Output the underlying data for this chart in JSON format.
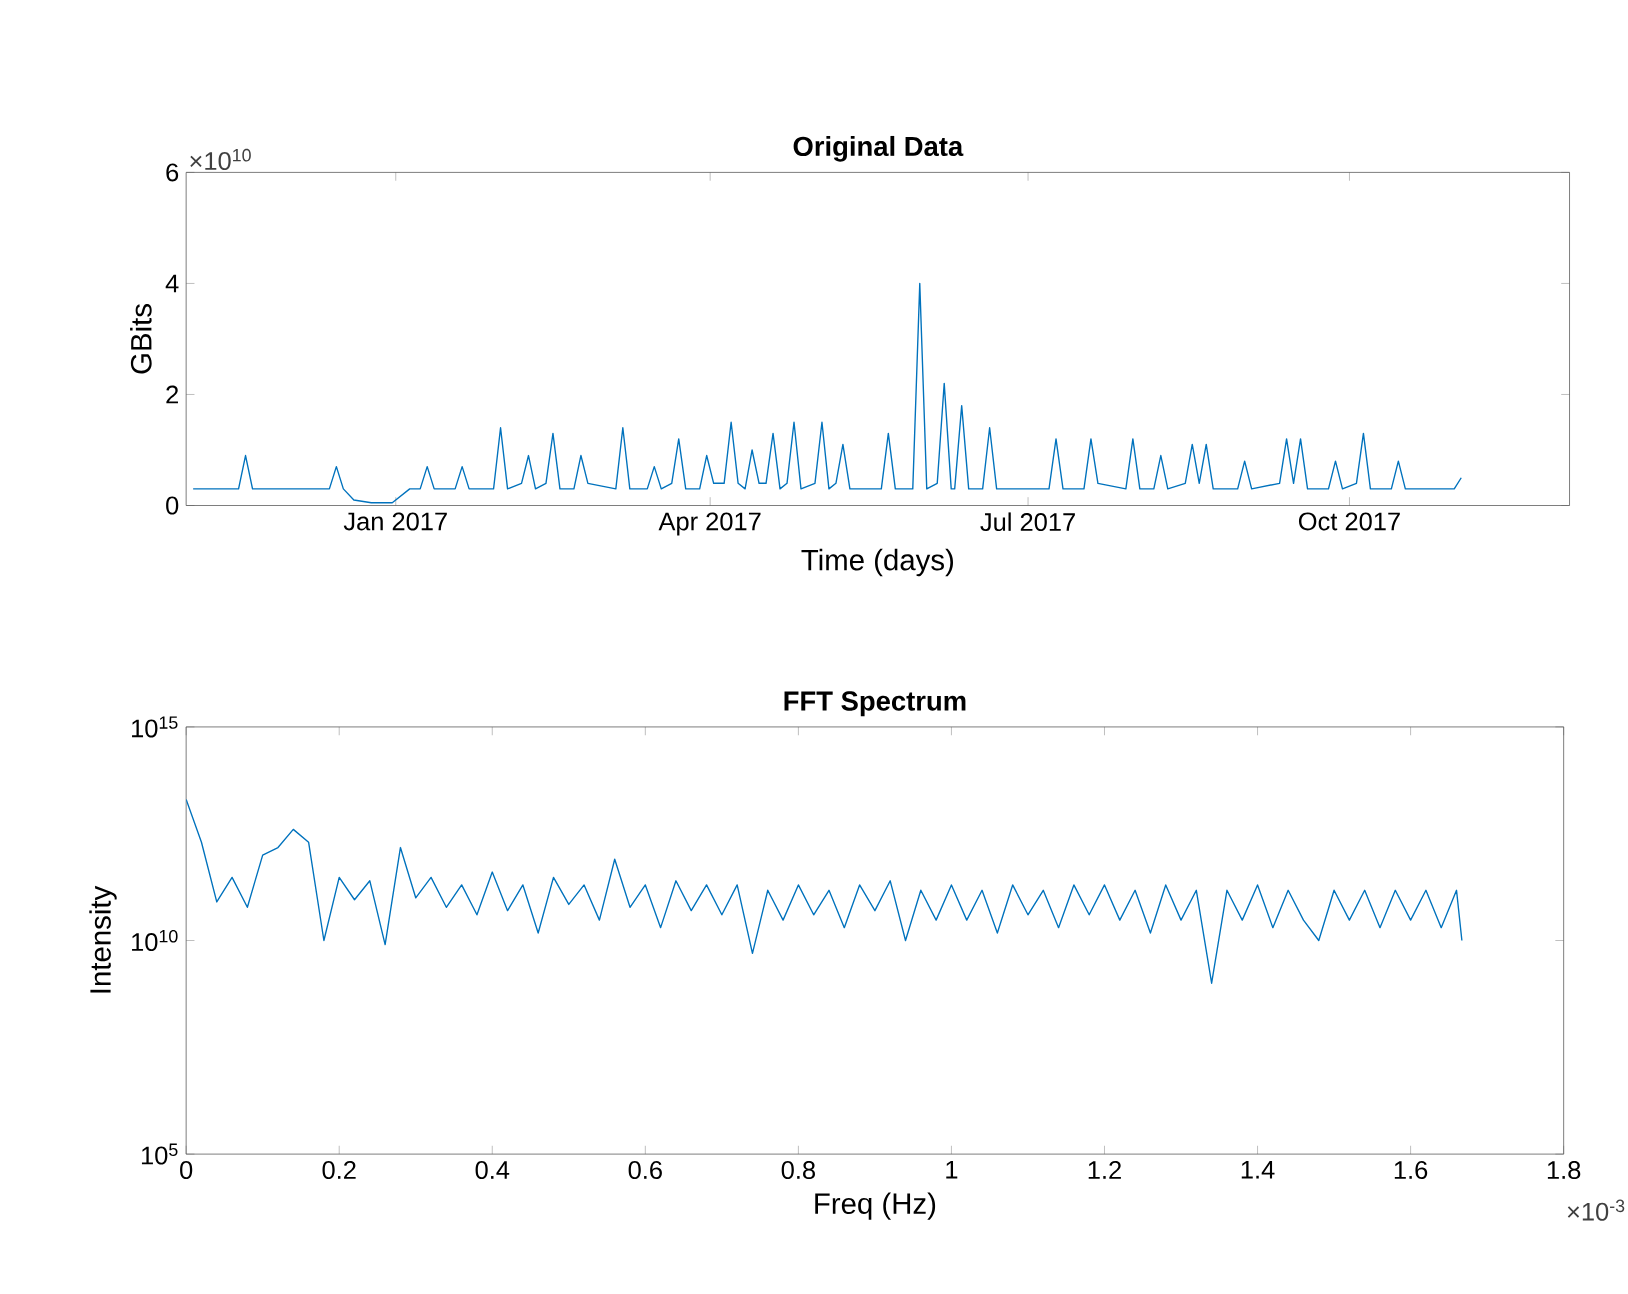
{
  "chart_data": [
    {
      "type": "line",
      "title": "Original Data",
      "xlabel": "Time (days)",
      "ylabel": "GBits",
      "x": [
        "2016-11-04",
        "2016-11-17",
        "2016-11-19",
        "2016-11-21",
        "2016-12-13",
        "2016-12-15",
        "2016-12-17",
        "2016-12-20",
        "2016-12-25",
        "2016-12-31",
        "2017-01-05",
        "2017-01-08",
        "2017-01-10",
        "2017-01-12",
        "2017-01-18",
        "2017-01-20",
        "2017-01-22",
        "2017-01-29",
        "2017-01-31",
        "2017-02-02",
        "2017-02-06",
        "2017-02-08",
        "2017-02-10",
        "2017-02-13",
        "2017-02-15",
        "2017-02-17",
        "2017-02-21",
        "2017-02-23",
        "2017-02-25",
        "2017-03-05",
        "2017-03-07",
        "2017-03-09",
        "2017-03-14",
        "2017-03-16",
        "2017-03-18",
        "2017-03-21",
        "2017-03-23",
        "2017-03-25",
        "2017-03-29",
        "2017-03-31",
        "2017-04-02",
        "2017-04-05",
        "2017-04-07",
        "2017-04-09",
        "2017-04-11",
        "2017-04-13",
        "2017-04-15",
        "2017-04-17",
        "2017-04-19",
        "2017-04-21",
        "2017-04-23",
        "2017-04-25",
        "2017-04-27",
        "2017-05-01",
        "2017-05-03",
        "2017-05-05",
        "2017-05-07",
        "2017-05-09",
        "2017-05-11",
        "2017-05-20",
        "2017-05-22",
        "2017-05-24",
        "2017-05-29",
        "2017-05-31",
        "2017-06-02",
        "2017-06-05",
        "2017-06-07",
        "2017-06-09",
        "2017-06-10",
        "2017-06-12",
        "2017-06-14",
        "2017-06-18",
        "2017-06-20",
        "2017-06-22",
        "2017-07-07",
        "2017-07-09",
        "2017-07-11",
        "2017-07-17",
        "2017-07-19",
        "2017-07-21",
        "2017-07-29",
        "2017-07-31",
        "2017-08-02",
        "2017-08-06",
        "2017-08-08",
        "2017-08-10",
        "2017-08-15",
        "2017-08-17",
        "2017-08-19",
        "2017-08-21",
        "2017-08-23",
        "2017-08-30",
        "2017-09-01",
        "2017-09-03",
        "2017-09-11",
        "2017-09-13",
        "2017-09-15",
        "2017-09-17",
        "2017-09-19",
        "2017-09-25",
        "2017-09-27",
        "2017-09-29",
        "2017-10-03",
        "2017-10-05",
        "2017-10-07",
        "2017-10-13",
        "2017-10-15",
        "2017-10-17",
        "2017-10-31",
        "2017-11-02"
      ],
      "series": [
        {
          "color": "#0072bd",
          "values": [
            0.3,
            0.3,
            0.9,
            0.3,
            0.3,
            0.7,
            0.3,
            0.1,
            0.05,
            0.05,
            0.3,
            0.3,
            0.7,
            0.3,
            0.3,
            0.7,
            0.3,
            0.3,
            1.4,
            0.3,
            0.4,
            0.9,
            0.3,
            0.4,
            1.3,
            0.3,
            0.3,
            0.9,
            0.4,
            0.3,
            1.4,
            0.3,
            0.3,
            0.7,
            0.3,
            0.4,
            1.2,
            0.3,
            0.3,
            0.9,
            0.4,
            0.4,
            1.5,
            0.4,
            0.3,
            1.0,
            0.4,
            0.4,
            1.3,
            0.3,
            0.4,
            1.5,
            0.3,
            0.4,
            1.5,
            0.3,
            0.4,
            1.1,
            0.3,
            0.3,
            1.3,
            0.3,
            0.3,
            4.0,
            0.3,
            0.4,
            2.2,
            0.3,
            0.3,
            1.8,
            0.3,
            0.3,
            1.4,
            0.3,
            0.3,
            1.2,
            0.3,
            0.3,
            1.2,
            0.4,
            0.3,
            1.2,
            0.3,
            0.3,
            0.9,
            0.3,
            0.4,
            1.1,
            0.4,
            1.1,
            0.3,
            0.3,
            0.8,
            0.3,
            0.4,
            1.2,
            0.4,
            1.2,
            0.3,
            0.3,
            0.8,
            0.3,
            0.4,
            1.3,
            0.3,
            0.3,
            0.8,
            0.3,
            0.3,
            0.5
          ]
        }
      ],
      "xlim": [
        "2016-11-02",
        "2017-12-03"
      ],
      "ylim": [
        0,
        6
      ],
      "xticks": [
        {
          "value": "2017-01-01",
          "label": "Jan 2017"
        },
        {
          "value": "2017-04-01",
          "label": "Apr 2017"
        },
        {
          "value": "2017-07-01",
          "label": "Jul 2017"
        },
        {
          "value": "2017-10-01",
          "label": "Oct 2017"
        }
      ],
      "yticks": [
        0,
        2,
        4,
        6
      ],
      "annotations": [
        "×10$^{10}$"
      ]
    },
    {
      "type": "line",
      "title": "FFT Spectrum",
      "xlabel": "Freq (Hz)",
      "ylabel": "Intensity",
      "log": "y",
      "x": [
        0,
        0.02,
        0.04,
        0.06,
        0.08,
        0.1,
        0.12,
        0.14,
        0.16,
        0.18,
        0.2,
        0.22,
        0.24,
        0.26,
        0.28,
        0.3,
        0.32,
        0.34,
        0.36,
        0.38,
        0.4,
        0.42,
        0.44,
        0.46,
        0.48,
        0.5,
        0.52,
        0.54,
        0.56,
        0.58,
        0.6,
        0.62,
        0.64,
        0.66,
        0.68,
        0.7,
        0.72,
        0.74,
        0.76,
        0.78,
        0.8,
        0.82,
        0.84,
        0.86,
        0.88,
        0.9,
        0.92,
        0.94,
        0.96,
        0.98,
        1.0,
        1.02,
        1.04,
        1.06,
        1.08,
        1.1,
        1.12,
        1.14,
        1.16,
        1.18,
        1.2,
        1.22,
        1.24,
        1.26,
        1.28,
        1.3,
        1.32,
        1.34,
        1.36,
        1.38,
        1.4,
        1.42,
        1.44,
        1.46,
        1.48,
        1.5,
        1.52,
        1.54,
        1.56,
        1.58,
        1.6,
        1.62,
        1.64,
        1.66,
        1.667
      ],
      "series": [
        {
          "color": "#0072bd",
          "values": [
            20000000000000.0,
            2000000000000.0,
            80000000000.0,
            300000000000.0,
            60000000000.0,
            1000000000000.0,
            1500000000000.0,
            4000000000000.0,
            2000000000000.0,
            10000000000.0,
            300000000000.0,
            90000000000.0,
            250000000000.0,
            8000000000.0,
            1500000000000.0,
            100000000000.0,
            300000000000.0,
            60000000000.0,
            200000000000.0,
            40000000000.0,
            400000000000.0,
            50000000000.0,
            200000000000.0,
            15000000000.0,
            300000000000.0,
            70000000000.0,
            200000000000.0,
            30000000000.0,
            800000000000.0,
            60000000000.0,
            200000000000.0,
            20000000000.0,
            250000000000.0,
            50000000000.0,
            200000000000.0,
            40000000000.0,
            200000000000.0,
            5000000000.0,
            150000000000.0,
            30000000000.0,
            200000000000.0,
            40000000000.0,
            150000000000.0,
            20000000000.0,
            200000000000.0,
            50000000000.0,
            250000000000.0,
            10000000000.0,
            150000000000.0,
            30000000000.0,
            200000000000.0,
            30000000000.0,
            150000000000.0,
            15000000000.0,
            200000000000.0,
            40000000000.0,
            150000000000.0,
            20000000000.0,
            200000000000.0,
            40000000000.0,
            200000000000.0,
            30000000000.0,
            150000000000.0,
            15000000000.0,
            200000000000.0,
            30000000000.0,
            150000000000.0,
            1000000000.0,
            150000000000.0,
            30000000000.0,
            200000000000.0,
            20000000000.0,
            150000000000.0,
            30000000000.0,
            10000000000.0,
            150000000000.0,
            30000000000.0,
            150000000000.0,
            20000000000.0,
            150000000000.0,
            30000000000.0,
            150000000000.0,
            20000000000.0,
            150000000000.0,
            10000000000.0
          ]
        }
      ],
      "xlim": [
        0,
        1.8
      ],
      "ylim": [
        100000.0,
        1000000000000000.0
      ],
      "xticks": [
        0,
        0.2,
        0.4,
        0.6,
        0.8,
        1,
        1.2,
        1.4,
        1.6,
        1.8
      ],
      "yticks": [
        {
          "value": 100000.0,
          "label": "10$^{5}$"
        },
        {
          "value": 10000000000.0,
          "label": "10$^{10}$"
        },
        {
          "value": 1000000000000000.0,
          "label": "10$^{15}$"
        }
      ],
      "annotations": [
        "×10$^{-3}$"
      ]
    }
  ]
}
